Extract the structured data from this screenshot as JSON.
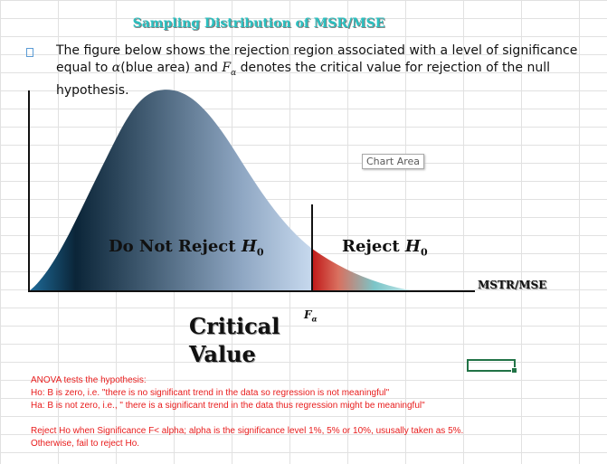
{
  "title": "Sampling Distribution of MSR/MSE",
  "intro": {
    "part1": "The figure below shows the rejection region associated with a level of significance equal to ",
    "alpha": "α",
    "part2": "(blue area) and ",
    "f": "F",
    "sub": "α",
    "part3": " denotes the critical value for rejection of the null hypothesis."
  },
  "chart": {
    "chart_area_label": "Chart Area",
    "do_not_reject": {
      "text": "Do Not Reject ",
      "h": "H",
      "sub": "0"
    },
    "reject": {
      "text": "Reject ",
      "h": "H",
      "sub": "0"
    },
    "axis_label": "MSTR/MSE",
    "critical_symbol": {
      "f": "F",
      "sub": "α"
    },
    "critical_label_line1": "Critical",
    "critical_label_line2": "Value"
  },
  "notes": {
    "line1": "ANOVA tests the hypothesis:",
    "line2": "Ho: B is zero, i.e.  \"there is no significant trend in the data so regression is not meaningful\"",
    "line3": "Ha: B is not zero, i.e., \" there is a significant trend in the data thus regression might be meaningful\"",
    "line4": "Reject Ho when Significance F< alpha; alpha is the significance level 1%, 5% or 10%, ususally taken as 5%.",
    "line5": "Otherwise, fail to reject Ho."
  },
  "colors": {
    "title": "#2cc0c0",
    "notes": "#e81c1c",
    "curve_dark": "#0b2538",
    "curve_light": "#c7d9ee",
    "reject_region": "#c01818",
    "selection": "#217346"
  }
}
